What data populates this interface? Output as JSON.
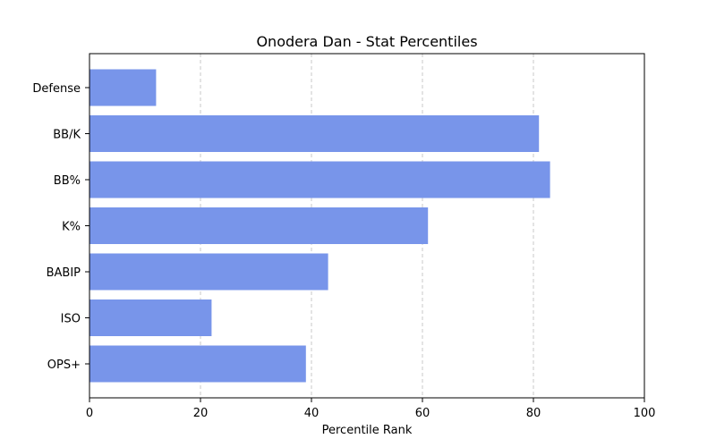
{
  "chart_data": {
    "type": "bar",
    "orientation": "horizontal",
    "title": "Onodera Dan - Stat Percentiles",
    "xlabel": "Percentile Rank",
    "ylabel": "",
    "xlim": [
      0,
      100
    ],
    "xticks": [
      0,
      20,
      40,
      60,
      80,
      100
    ],
    "grid": "x-axis dashed",
    "categories": [
      "Defense",
      "BB/K",
      "BB%",
      "K%",
      "BABIP",
      "ISO",
      "OPS+"
    ],
    "values": [
      12,
      81,
      83,
      61,
      43,
      22,
      39
    ],
    "bar_color": "#7895ea"
  }
}
